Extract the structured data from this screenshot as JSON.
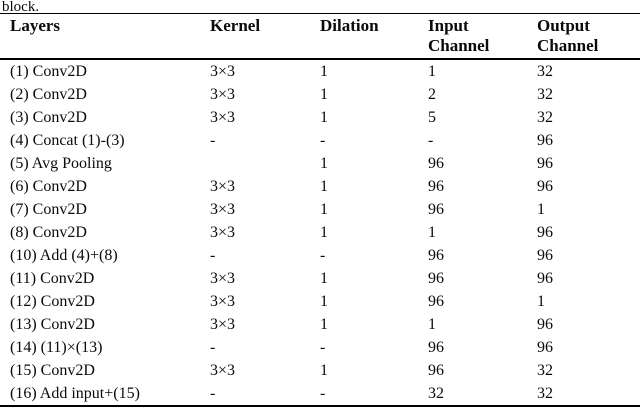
{
  "caption_fragment": "block.",
  "table": {
    "headers": [
      {
        "line1": "Layers",
        "line2": ""
      },
      {
        "line1": "Kernel",
        "line2": ""
      },
      {
        "line1": "Dilation",
        "line2": ""
      },
      {
        "line1": "Input",
        "line2": "Channel"
      },
      {
        "line1": "Output",
        "line2": "Channel"
      }
    ],
    "rows": [
      [
        "(1) Conv2D",
        "3×3",
        "1",
        "1",
        "32"
      ],
      [
        "(2) Conv2D",
        "3×3",
        "1",
        "2",
        "32"
      ],
      [
        "(3) Conv2D",
        "3×3",
        "1",
        "5",
        "32"
      ],
      [
        "(4) Concat (1)-(3)",
        "-",
        "-",
        "-",
        "96"
      ],
      [
        "(5) Avg Pooling",
        "",
        "1",
        "96",
        "96"
      ],
      [
        "(6) Conv2D",
        "3×3",
        "1",
        "96",
        "96"
      ],
      [
        "(7) Conv2D",
        "3×3",
        "1",
        "96",
        "1"
      ],
      [
        "(8) Conv2D",
        "3×3",
        "1",
        "1",
        "96"
      ],
      [
        "(10) Add (4)+(8)",
        "-",
        "-",
        "96",
        "96"
      ],
      [
        "(11) Conv2D",
        "3×3",
        "1",
        "96",
        "96"
      ],
      [
        "(12) Conv2D",
        "3×3",
        "1",
        "96",
        "1"
      ],
      [
        "(13) Conv2D",
        "3×3",
        "1",
        "1",
        "96"
      ],
      [
        "(14) (11)×(13)",
        "-",
        "-",
        "96",
        "96"
      ],
      [
        "(15) Conv2D",
        "3×3",
        "1",
        "96",
        "32"
      ],
      [
        "(16) Add input+(15)",
        "-",
        "-",
        "32",
        "32"
      ]
    ],
    "colors": {
      "text": "#0a0a0a",
      "rule": "#000000",
      "background": "#ffffff"
    }
  }
}
